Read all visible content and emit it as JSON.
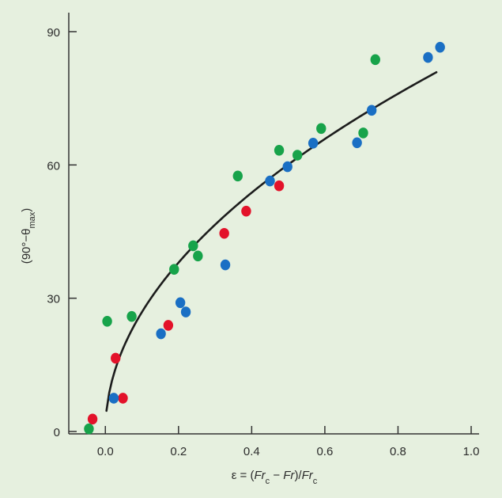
{
  "colors": {
    "background": "#e6f0df",
    "axis": "#333333",
    "curve": "#1c1c1c",
    "red": "#e3122a",
    "green": "#17a34a",
    "blue": "#1a6fc4"
  },
  "chart_data": {
    "type": "scatter",
    "title": "",
    "xlabel_parts": [
      {
        "text": "ε = (",
        "italic": false,
        "sub": false
      },
      {
        "text": "Fr",
        "italic": true,
        "sub": false
      },
      {
        "text": "c",
        "italic": false,
        "sub": true
      },
      {
        "text": " − ",
        "italic": false,
        "sub": false
      },
      {
        "text": "Fr",
        "italic": true,
        "sub": false
      },
      {
        "text": ")/",
        "italic": false,
        "sub": false
      },
      {
        "text": "Fr",
        "italic": true,
        "sub": false
      },
      {
        "text": "c",
        "italic": false,
        "sub": true
      }
    ],
    "ylabel_parts": [
      {
        "text": "(90°−θ",
        "sub": false
      },
      {
        "text": "max",
        "sub": true
      },
      {
        "text": ")",
        "sub": false
      }
    ],
    "xlim": [
      -0.1,
      1.0
    ],
    "ylim": [
      0,
      90
    ],
    "x_ticks": [
      {
        "value": 0.0,
        "label": "0.0"
      },
      {
        "value": 0.2,
        "label": "0.2"
      },
      {
        "value": 0.4,
        "label": "0.4"
      },
      {
        "value": 0.6,
        "label": "0.6"
      },
      {
        "value": 0.8,
        "label": "0.8"
      },
      {
        "value": 1.0,
        "label": "1.0"
      }
    ],
    "y_ticks": [
      {
        "value": 0,
        "label": "0"
      },
      {
        "value": 30,
        "label": "30"
      },
      {
        "value": 60,
        "label": "60"
      },
      {
        "value": 90,
        "label": "90"
      }
    ],
    "grid": false,
    "legend": "none",
    "series": [
      {
        "color": "red",
        "points": [
          {
            "x": -0.035,
            "y": 2.8
          },
          {
            "x": 0.028,
            "y": 16.5
          },
          {
            "x": 0.048,
            "y": 7.5
          },
          {
            "x": 0.172,
            "y": 23.9
          },
          {
            "x": 0.325,
            "y": 44.6
          },
          {
            "x": 0.385,
            "y": 49.6
          },
          {
            "x": 0.475,
            "y": 55.3
          }
        ]
      },
      {
        "color": "green",
        "points": [
          {
            "x": -0.045,
            "y": 0.6
          },
          {
            "x": 0.005,
            "y": 24.8
          },
          {
            "x": 0.072,
            "y": 25.9
          },
          {
            "x": 0.188,
            "y": 36.5
          },
          {
            "x": 0.24,
            "y": 41.8
          },
          {
            "x": 0.253,
            "y": 39.5
          },
          {
            "x": 0.362,
            "y": 57.5
          },
          {
            "x": 0.475,
            "y": 63.3
          },
          {
            "x": 0.525,
            "y": 62.2
          },
          {
            "x": 0.59,
            "y": 68.2
          },
          {
            "x": 0.705,
            "y": 67.2
          },
          {
            "x": 0.738,
            "y": 83.7
          }
        ]
      },
      {
        "color": "blue",
        "points": [
          {
            "x": 0.023,
            "y": 7.5
          },
          {
            "x": 0.152,
            "y": 22.0
          },
          {
            "x": 0.205,
            "y": 29.0
          },
          {
            "x": 0.22,
            "y": 26.9
          },
          {
            "x": 0.328,
            "y": 37.5
          },
          {
            "x": 0.45,
            "y": 56.4
          },
          {
            "x": 0.498,
            "y": 59.6
          },
          {
            "x": 0.568,
            "y": 64.9
          },
          {
            "x": 0.688,
            "y": 65.0
          },
          {
            "x": 0.728,
            "y": 72.3
          },
          {
            "x": 0.882,
            "y": 84.2
          },
          {
            "x": 0.915,
            "y": 86.5
          }
        ]
      }
    ],
    "fit_curve": {
      "form": "power",
      "coefficient": 85,
      "exponent": 0.5,
      "x_range": [
        0.003,
        0.905
      ]
    }
  }
}
